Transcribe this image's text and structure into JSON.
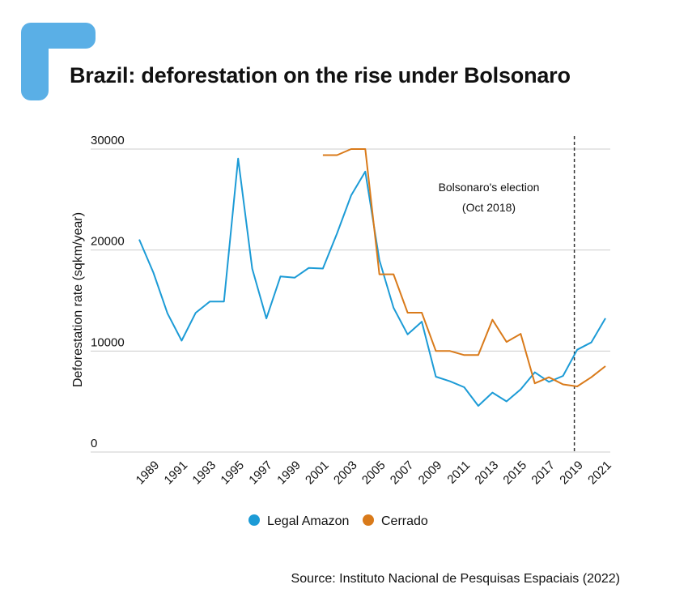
{
  "title": "Brazil: deforestation on the rise under Bolsonaro",
  "source": "Source: Instituto Nacional de Pesquisas Espaciais (2022)",
  "colors": {
    "logo": "#5aafe6",
    "amazon": "#1c9bd6",
    "cerrado": "#d97a1a",
    "grid": "#cccccc",
    "vline": "#333333"
  },
  "chart_data": {
    "type": "line",
    "title": "Brazil: deforestation on the rise under Bolsonaro",
    "ylabel": "Deforestation rate (sqkm/year)",
    "xlabel": "",
    "ylim": [
      0,
      30000
    ],
    "xlim": [
      1988,
      2021
    ],
    "yticks": [
      "0",
      "10000",
      "20000",
      "30000"
    ],
    "xticks": [
      "1989",
      "1991",
      "1993",
      "1995",
      "1997",
      "1999",
      "2001",
      "2003",
      "2005",
      "2007",
      "2009",
      "2011",
      "2013",
      "2015",
      "2017",
      "2019",
      "2021"
    ],
    "grid": true,
    "legend_position": "bottom",
    "annotation": {
      "line1": "Bolsonaro's election",
      "line2": "(Oct 2018)",
      "x": 2018.8
    },
    "series": [
      {
        "name": "Legal Amazon",
        "color": "#1c9bd6",
        "x": [
          1988,
          1989,
          1990,
          1991,
          1992,
          1993,
          1994,
          1995,
          1996,
          1997,
          1998,
          1999,
          2000,
          2001,
          2002,
          2003,
          2004,
          2005,
          2006,
          2007,
          2008,
          2009,
          2010,
          2011,
          2012,
          2013,
          2014,
          2015,
          2016,
          2017,
          2018,
          2019,
          2020,
          2021
        ],
        "values": [
          21050,
          17770,
          13730,
          11030,
          13790,
          14900,
          14900,
          29060,
          18160,
          13230,
          17380,
          17260,
          18230,
          18170,
          21650,
          25400,
          27770,
          19010,
          14290,
          11650,
          12910,
          7460,
          7000,
          6420,
          4570,
          5890,
          5010,
          6210,
          7890,
          6950,
          7540,
          10130,
          10850,
          13240
        ]
      },
      {
        "name": "Cerrado",
        "color": "#d97a1a",
        "x": [
          2001,
          2002,
          2003,
          2004,
          2005,
          2006,
          2007,
          2008,
          2009,
          2010,
          2011,
          2012,
          2013,
          2014,
          2015,
          2016,
          2017,
          2018,
          2019,
          2020,
          2021
        ],
        "values": [
          29400,
          29400,
          30000,
          30000,
          17600,
          17600,
          13800,
          13800,
          10000,
          10000,
          9600,
          9600,
          13100,
          10900,
          11700,
          6800,
          7400,
          6700,
          6500,
          7400,
          8500
        ]
      }
    ]
  }
}
